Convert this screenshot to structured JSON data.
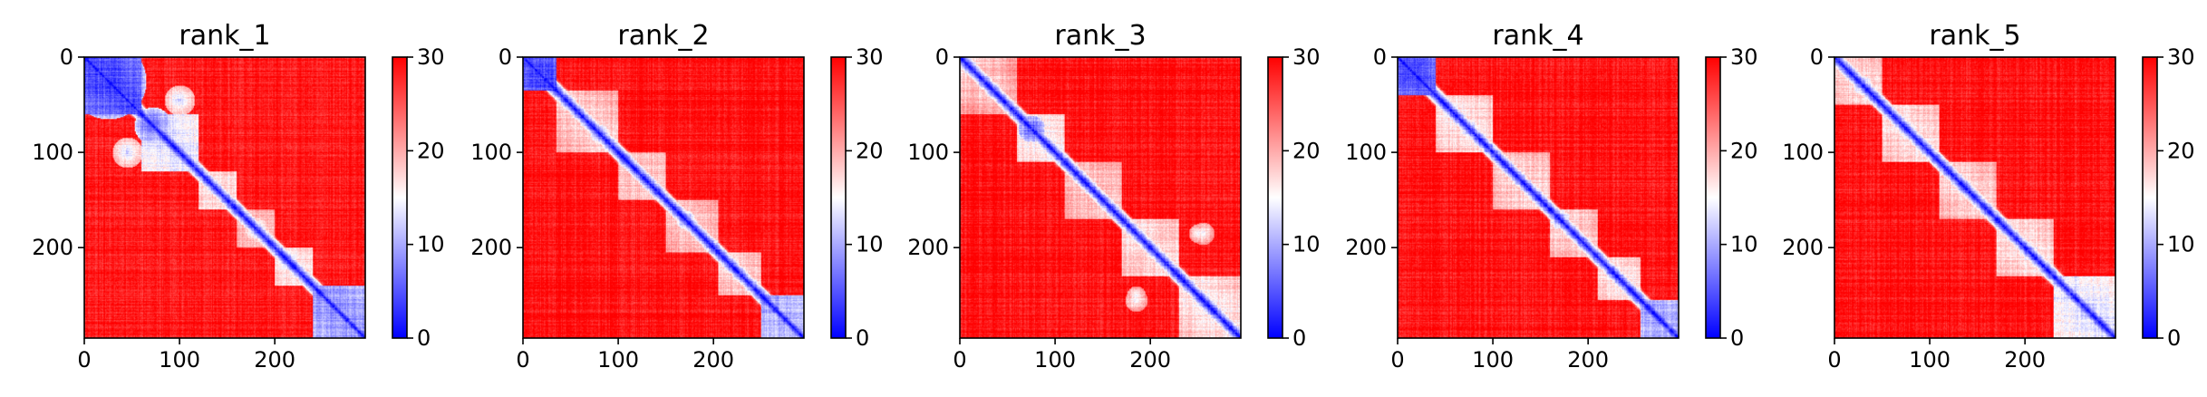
{
  "chart_data": [
    {
      "type": "heatmap",
      "title": "rank_1",
      "x_ticks": [
        "0",
        "100",
        "200"
      ],
      "y_ticks": [
        "0",
        "100",
        "200"
      ],
      "x_tick_values": [
        0,
        100,
        200
      ],
      "y_tick_values": [
        0,
        100,
        200
      ],
      "matrix_size": 295,
      "colorbar": {
        "ticks": [
          "0",
          "10",
          "20",
          "30"
        ],
        "tick_values": [
          0,
          10,
          20,
          30
        ],
        "range": [
          0,
          30
        ],
        "colormap": "bwr"
      },
      "pattern": {
        "background": 28.5,
        "diagonal": 0.5,
        "seed": 11,
        "domains": [
          [
            0,
            60,
            4
          ],
          [
            60,
            120,
            13
          ],
          [
            120,
            160,
            16
          ],
          [
            160,
            200,
            18
          ],
          [
            200,
            240,
            16
          ],
          [
            240,
            295,
            8
          ]
        ],
        "blobs": [
          [
            25,
            25,
            40,
            4
          ],
          [
            70,
            72,
            18,
            5
          ],
          [
            100,
            45,
            16,
            12
          ],
          [
            180,
            180,
            12,
            10
          ]
        ]
      }
    },
    {
      "type": "heatmap",
      "title": "rank_2",
      "x_ticks": [
        "0",
        "100",
        "200"
      ],
      "y_ticks": [
        "0",
        "100",
        "200"
      ],
      "x_tick_values": [
        0,
        100,
        200
      ],
      "y_tick_values": [
        0,
        100,
        200
      ],
      "matrix_size": 295,
      "colorbar": {
        "ticks": [
          "0",
          "10",
          "20",
          "30"
        ],
        "tick_values": [
          0,
          10,
          20,
          30
        ],
        "range": [
          0,
          30
        ],
        "colormap": "bwr"
      },
      "pattern": {
        "background": 29,
        "diagonal": 0.5,
        "seed": 23,
        "domains": [
          [
            0,
            35,
            4
          ],
          [
            35,
            100,
            17
          ],
          [
            100,
            150,
            18
          ],
          [
            150,
            205,
            18
          ],
          [
            205,
            250,
            17
          ],
          [
            250,
            295,
            10
          ]
        ],
        "blobs": [
          [
            18,
            18,
            16,
            3
          ],
          [
            80,
            80,
            10,
            8
          ],
          [
            170,
            170,
            10,
            8
          ],
          [
            175,
            175,
            8,
            9
          ]
        ]
      }
    },
    {
      "type": "heatmap",
      "title": "rank_3",
      "x_ticks": [
        "0",
        "100",
        "200"
      ],
      "y_ticks": [
        "0",
        "100",
        "200"
      ],
      "x_tick_values": [
        0,
        100,
        200
      ],
      "y_tick_values": [
        0,
        100,
        200
      ],
      "matrix_size": 295,
      "colorbar": {
        "ticks": [
          "0",
          "10",
          "20",
          "30"
        ],
        "tick_values": [
          0,
          10,
          20,
          30
        ],
        "range": [
          0,
          30
        ],
        "colormap": "bwr"
      },
      "pattern": {
        "background": 29,
        "diagonal": 0.5,
        "seed": 37,
        "domains": [
          [
            0,
            60,
            18
          ],
          [
            60,
            110,
            15
          ],
          [
            110,
            170,
            18
          ],
          [
            170,
            230,
            16
          ],
          [
            230,
            295,
            16
          ]
        ],
        "blobs": [
          [
            75,
            75,
            14,
            4
          ],
          [
            185,
            255,
            12,
            14
          ],
          [
            255,
            185,
            12,
            14
          ],
          [
            185,
            250,
            10,
            13
          ]
        ]
      }
    },
    {
      "type": "heatmap",
      "title": "rank_4",
      "x_ticks": [
        "0",
        "100",
        "200"
      ],
      "y_ticks": [
        "0",
        "100",
        "200"
      ],
      "x_tick_values": [
        0,
        100,
        200
      ],
      "y_tick_values": [
        0,
        100,
        200
      ],
      "matrix_size": 295,
      "colorbar": {
        "ticks": [
          "0",
          "10",
          "20",
          "30"
        ],
        "tick_values": [
          0,
          10,
          20,
          30
        ],
        "range": [
          0,
          30
        ],
        "colormap": "bwr"
      },
      "pattern": {
        "background": 29,
        "diagonal": 0.5,
        "seed": 53,
        "domains": [
          [
            0,
            40,
            5
          ],
          [
            40,
            100,
            16
          ],
          [
            100,
            160,
            17
          ],
          [
            160,
            210,
            17
          ],
          [
            210,
            255,
            16
          ],
          [
            255,
            295,
            10
          ]
        ],
        "blobs": [
          [
            20,
            20,
            18,
            4
          ],
          [
            75,
            75,
            10,
            8
          ],
          [
            170,
            170,
            10,
            8
          ]
        ]
      }
    },
    {
      "type": "heatmap",
      "title": "rank_5",
      "x_ticks": [
        "0",
        "100",
        "200"
      ],
      "y_ticks": [
        "0",
        "100",
        "200"
      ],
      "x_tick_values": [
        0,
        100,
        200
      ],
      "y_tick_values": [
        0,
        100,
        200
      ],
      "matrix_size": 295,
      "colorbar": {
        "ticks": [
          "0",
          "10",
          "20",
          "30"
        ],
        "tick_values": [
          0,
          10,
          20,
          30
        ],
        "range": [
          0,
          30
        ],
        "colormap": "bwr"
      },
      "pattern": {
        "background": 29,
        "diagonal": 0.5,
        "seed": 71,
        "domains": [
          [
            0,
            50,
            17
          ],
          [
            50,
            110,
            16
          ],
          [
            110,
            170,
            17
          ],
          [
            170,
            230,
            16
          ],
          [
            230,
            295,
            13
          ]
        ],
        "blobs": [
          [
            30,
            30,
            10,
            8
          ],
          [
            75,
            75,
            10,
            9
          ],
          [
            265,
            265,
            14,
            8
          ]
        ]
      }
    }
  ]
}
